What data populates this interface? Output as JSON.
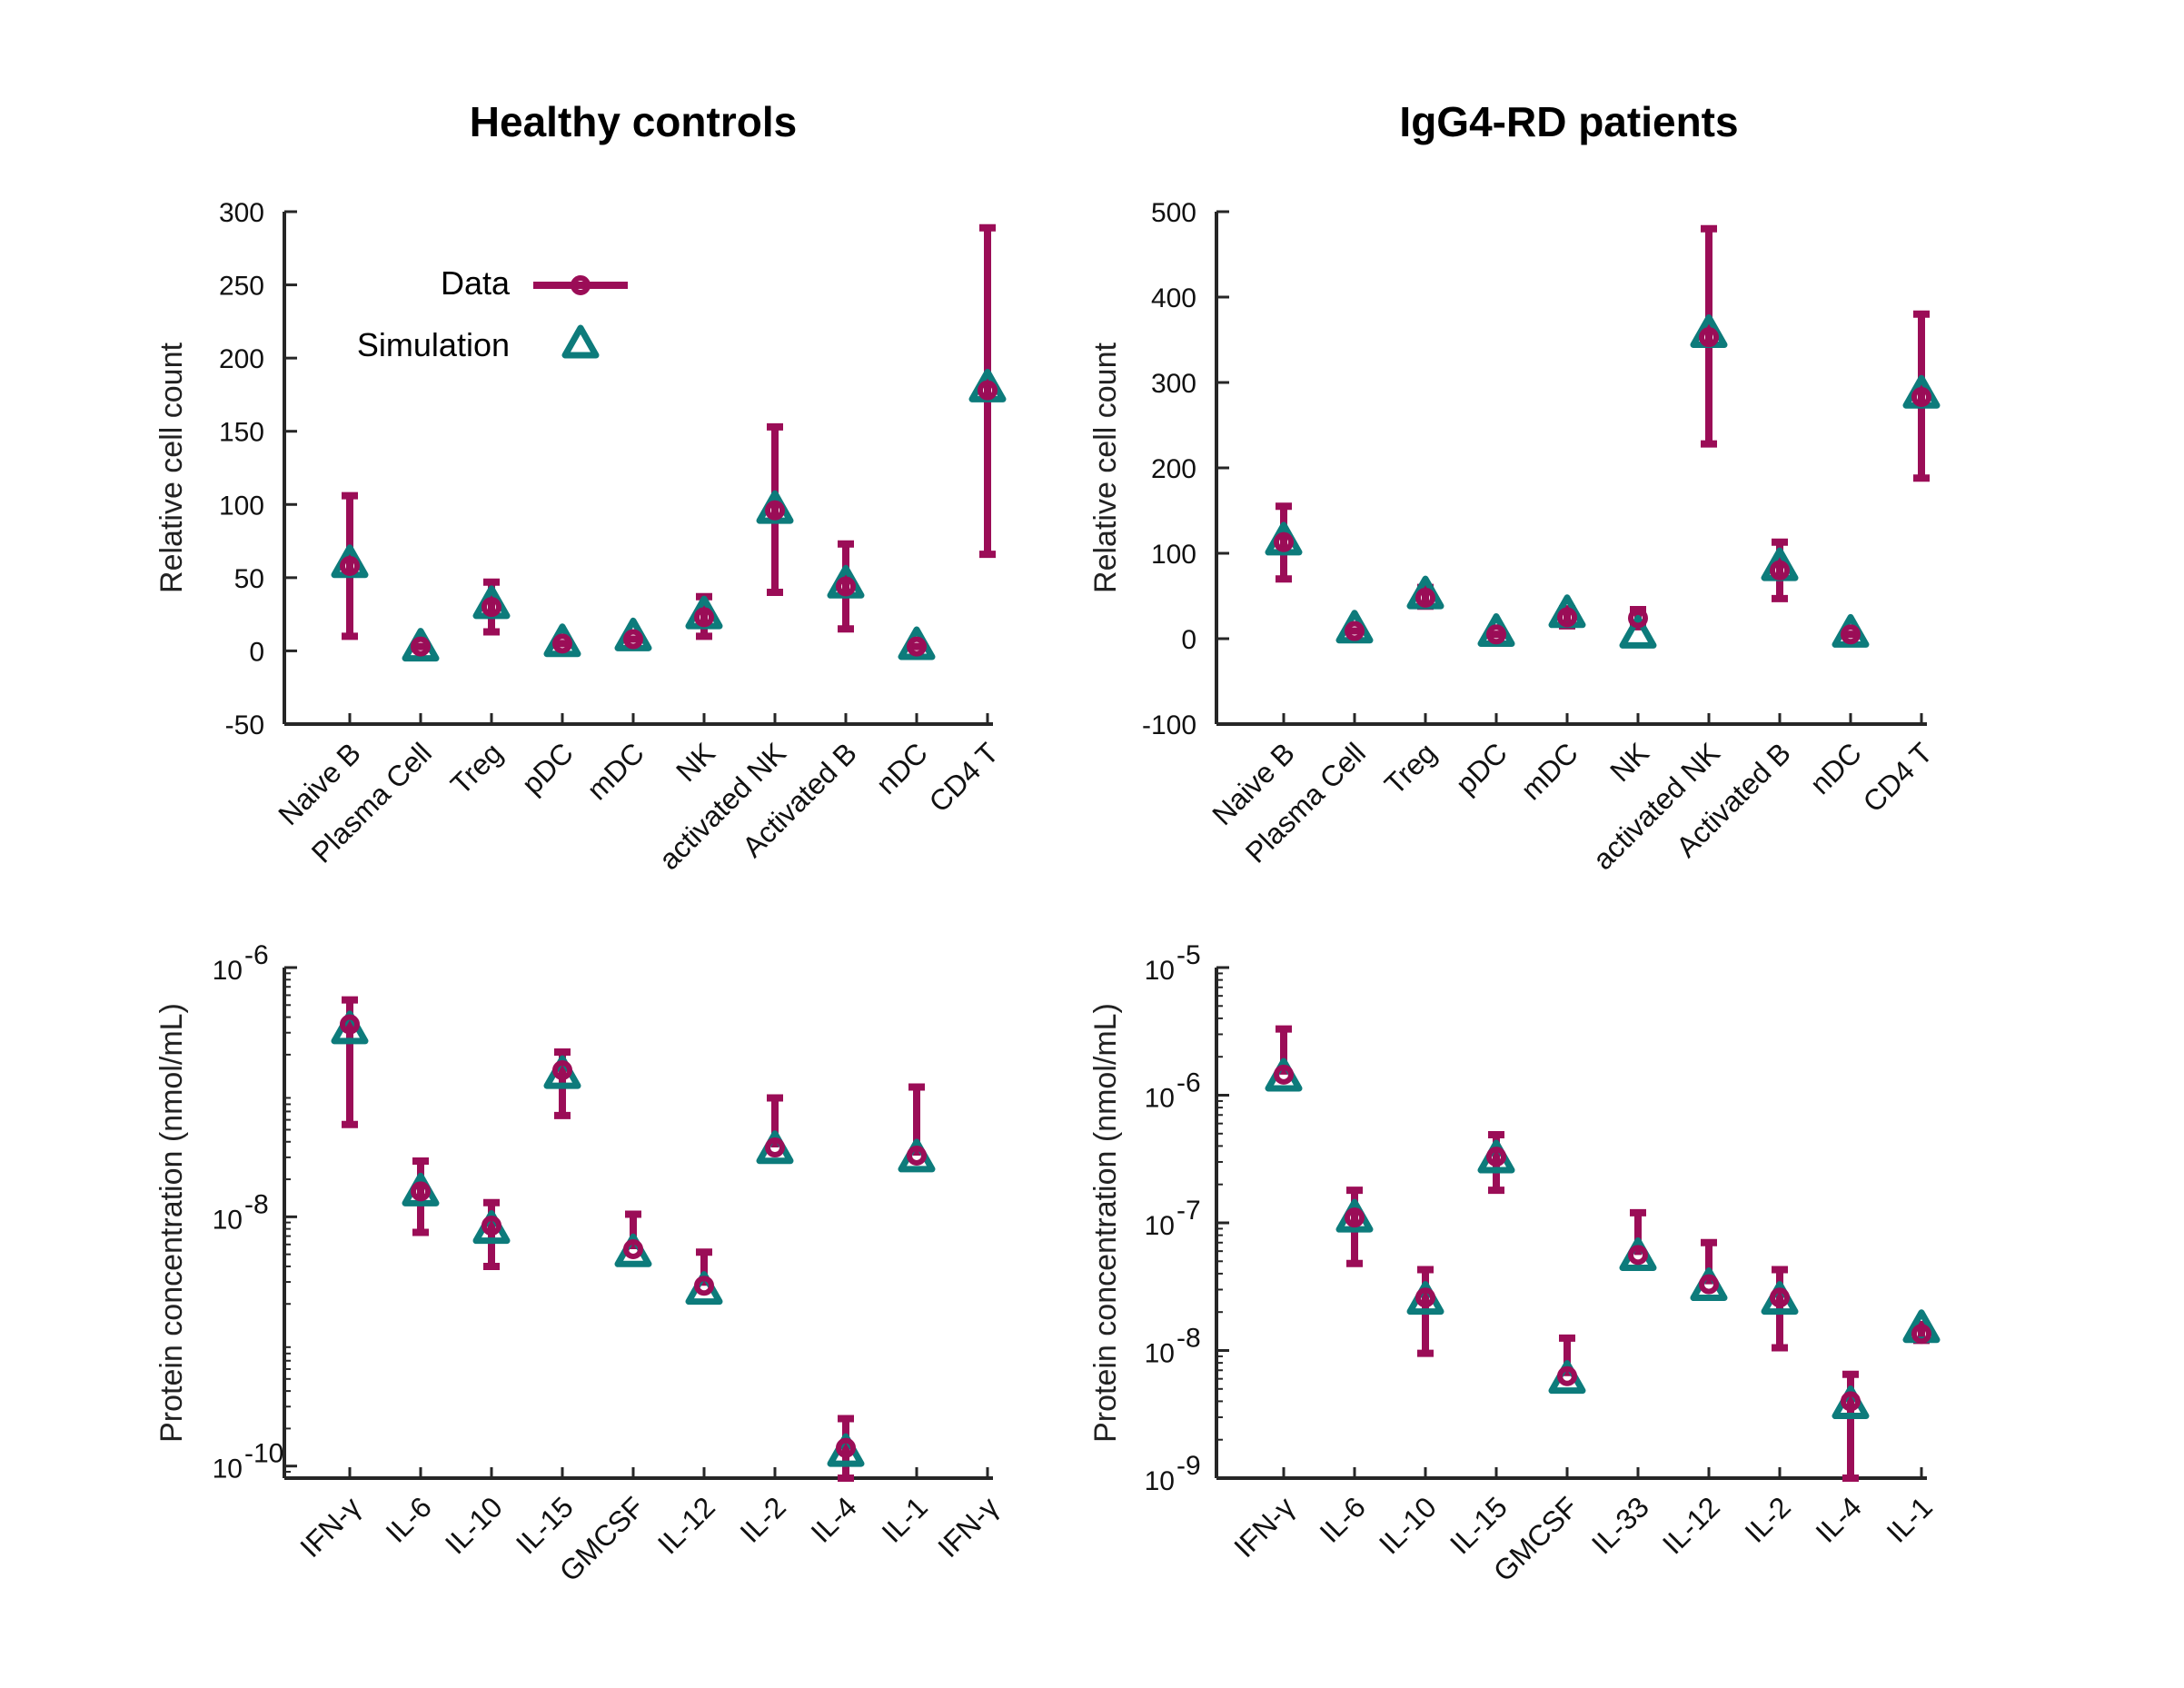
{
  "colors": {
    "data": "#9b0d57",
    "simulation": "#0d7b7b",
    "axis": "#262626"
  },
  "legend": {
    "data_label": "Data",
    "simulation_label": "Simulation"
  },
  "chart_data": [
    {
      "id": "healthy-cells",
      "type": "scatter",
      "title": "Healthy controls",
      "ylabel": "Relative cell count",
      "yscale": "linear",
      "ylim": [
        -50,
        300
      ],
      "yticks": [
        -50,
        0,
        50,
        100,
        150,
        200,
        250,
        300
      ],
      "ytick_labels": [
        "-50",
        "0",
        "50",
        "100",
        "150",
        "200",
        "250",
        "300"
      ],
      "categories": [
        "Naive B",
        "Plasma Cell",
        "Treg",
        "pDC",
        "mDC",
        "NK",
        "activated NK",
        "Activated B",
        "nDC",
        "CD4 T"
      ],
      "series": [
        {
          "name": "Data",
          "values": [
            58,
            3,
            30,
            5,
            8,
            23,
            96,
            44,
            3,
            178
          ],
          "err_low": [
            10,
            3,
            13,
            5,
            8,
            10,
            40,
            15,
            3,
            66
          ],
          "err_high": [
            106,
            3,
            47,
            5,
            8,
            37,
            153,
            73,
            3,
            289
          ]
        },
        {
          "name": "Simulation",
          "values": [
            60,
            3,
            32,
            6,
            10,
            25,
            97,
            46,
            4,
            180
          ]
        }
      ],
      "legend_position": "top-left"
    },
    {
      "id": "patient-cells",
      "type": "scatter",
      "title": "IgG4-RD patients",
      "ylabel": "Relative cell count",
      "yscale": "linear",
      "ylim": [
        -100,
        500
      ],
      "yticks": [
        -100,
        0,
        100,
        200,
        300,
        400,
        500
      ],
      "ytick_labels": [
        "-100",
        "0",
        "100",
        "200",
        "300",
        "400",
        "500"
      ],
      "categories": [
        "Naive B",
        "Plasma Cell",
        "Treg",
        "pDC",
        "mDC",
        "NK",
        "activated NK",
        "Activated B",
        "nDC",
        "CD4 T"
      ],
      "series": [
        {
          "name": "Data",
          "values": [
            113,
            9,
            48,
            5,
            25,
            24,
            353,
            80,
            5,
            283
          ],
          "err_low": [
            70,
            9,
            38,
            5,
            15,
            14,
            228,
            47,
            5,
            188
          ],
          "err_high": [
            155,
            9,
            60,
            5,
            35,
            34,
            480,
            113,
            5,
            380
          ]
        },
        {
          "name": "Simulation",
          "values": [
            115,
            12,
            52,
            8,
            30,
            6,
            358,
            85,
            7,
            287
          ]
        }
      ]
    },
    {
      "id": "healthy-proteins",
      "type": "scatter",
      "title": "",
      "ylabel": "Protein concentration (nmol/mL)",
      "yscale": "log",
      "ylim": [
        8e-11,
        1e-06
      ],
      "yticks": [
        1e-10,
        1e-08,
        1e-06
      ],
      "ytick_labels": [
        {
          "base": "10",
          "exp": "-10"
        },
        {
          "base": "10",
          "exp": "-8"
        },
        {
          "base": "10",
          "exp": "-6"
        }
      ],
      "categories": [
        "IFN-γ",
        "IL-6",
        "IL-10",
        "IL-15",
        "GMCSF",
        "IL-12",
        "IL-2",
        "IL-4",
        "IL-1",
        "IFN-γ"
      ],
      "series": [
        {
          "name": "Data",
          "values": [
            3.5e-07,
            1.6e-08,
            8.5e-09,
            1.5e-07,
            5.5e-09,
            2.8e-09,
            3.6e-08,
            1.4e-10,
            3.1e-08,
            null
          ],
          "err_low": [
            5.5e-08,
            7.5e-09,
            4e-09,
            6.5e-08,
            null,
            null,
            null,
            8e-11,
            null,
            null
          ],
          "err_high": [
            5.5e-07,
            2.8e-08,
            1.3e-08,
            2.1e-07,
            1.05e-08,
            5.2e-09,
            9e-08,
            2.4e-10,
            1.1e-07,
            null
          ]
        },
        {
          "name": "Simulation",
          "values": [
            3.2e-07,
            1.6e-08,
            8e-09,
            1.4e-07,
            5.2e-09,
            2.6e-09,
            3.5e-08,
            1.3e-10,
            3e-08,
            null
          ]
        }
      ]
    },
    {
      "id": "patient-proteins",
      "type": "scatter",
      "title": "",
      "ylabel": "Protein concentration (nmol/mL)",
      "yscale": "log",
      "ylim": [
        1e-09,
        1e-05
      ],
      "yticks": [
        1e-09,
        1e-08,
        1e-07,
        1e-06,
        1e-05
      ],
      "ytick_labels": [
        {
          "base": "10",
          "exp": "-9"
        },
        {
          "base": "10",
          "exp": "-8"
        },
        {
          "base": "10",
          "exp": "-7"
        },
        {
          "base": "10",
          "exp": "-6"
        },
        {
          "base": "10",
          "exp": "-5"
        }
      ],
      "categories": [
        "IFN-γ",
        "IL-6",
        "IL-10",
        "IL-15",
        "GMCSF",
        "IL-33",
        "IL-12",
        "IL-2",
        "IL-4",
        "IL-1"
      ],
      "series": [
        {
          "name": "Data",
          "values": [
            1.45e-06,
            1.1e-07,
            2.6e-08,
            3.3e-07,
            6.3e-09,
            5.6e-08,
            3.3e-08,
            2.6e-08,
            4e-09,
            1.35e-08
          ],
          "err_low": [
            null,
            4.8e-08,
            9.5e-09,
            1.8e-07,
            null,
            null,
            null,
            1.05e-08,
            1e-09,
            1.2e-08
          ],
          "err_high": [
            3.3e-06,
            1.8e-07,
            4.3e-08,
            4.9e-07,
            1.25e-08,
            1.2e-07,
            7e-08,
            4.3e-08,
            6.5e-09,
            1.6e-08
          ]
        },
        {
          "name": "Simulation",
          "values": [
            1.4e-06,
            1.1e-07,
            2.5e-08,
            3.2e-07,
            6e-09,
            5.5e-08,
            3.2e-08,
            2.5e-08,
            3.8e-09,
            1.5e-08
          ]
        }
      ]
    }
  ]
}
